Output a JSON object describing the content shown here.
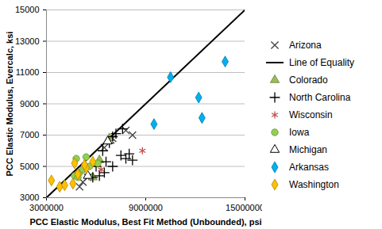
{
  "chart_data": {
    "type": "scatter",
    "xlabel": "PCC Elastic Modulus, Best Fit Method (Unbounded), psi",
    "ylabel": "PCC Elastic Modulus, Evercalc, ksi",
    "xlim": [
      3000000,
      15000000
    ],
    "xticks": [
      3000000,
      9000000,
      15000000
    ],
    "ylim": [
      3000,
      15000
    ],
    "yticks": [
      3000,
      5000,
      7000,
      9000,
      11000,
      13000,
      15000
    ],
    "grid": "y",
    "legend": "right",
    "series": [
      {
        "name": "Arizona",
        "type": "scatter",
        "marker": "x",
        "color": "#404040",
        "x": [
          7800000,
          8200000,
          7000000,
          5000000,
          5500000,
          6500000,
          5200000
        ],
        "y": [
          7300,
          7000,
          6800,
          3700,
          4300,
          6200,
          4000
        ]
      },
      {
        "name": "Line of Equality",
        "type": "line",
        "line_style": "solid",
        "color": "#000000",
        "x": [
          3000000,
          15000000
        ],
        "y": [
          3000,
          15000
        ]
      },
      {
        "name": "Colorado",
        "type": "scatter",
        "marker": "triangle",
        "color": "#9bbb59",
        "x": [
          5800000,
          6800000,
          6200000
        ],
        "y": [
          4300,
          6800,
          5400
        ]
      },
      {
        "name": "North Carolina",
        "type": "scatter",
        "marker": "plus",
        "color": "#000000",
        "x": [
          6200000,
          6500000,
          7000000,
          7500000,
          7800000,
          8200000,
          8000000,
          7600000,
          7200000,
          6800000,
          6400000,
          6600000,
          5800000,
          6000000,
          7000000
        ],
        "y": [
          4400,
          4600,
          5000,
          5700,
          5500,
          5400,
          5800,
          7400,
          7100,
          6500,
          6000,
          5300,
          4300,
          5000,
          6900
        ]
      },
      {
        "name": "Wisconsin",
        "type": "scatter",
        "marker": "asterisk",
        "color": "#c0504d",
        "x": [
          8800000,
          6300000
        ],
        "y": [
          6000,
          4800
        ]
      },
      {
        "name": "Iowa",
        "type": "scatter",
        "marker": "circle",
        "color": "#92d050",
        "x": [
          4800000,
          5000000,
          4700000,
          4900000,
          5400000,
          5200000,
          6100000,
          5600000
        ],
        "y": [
          5500,
          4600,
          4400,
          4300,
          5600,
          4800,
          5200,
          5000
        ]
      },
      {
        "name": "Michigan",
        "type": "scatter",
        "marker": "open_triangle",
        "color": "#000000",
        "x": [
          6700000,
          5500000
        ],
        "y": [
          6600,
          4400
        ]
      },
      {
        "name": "Arkansas",
        "type": "scatter",
        "marker": "diamond",
        "color": "#00b0f0",
        "x": [
          13800000,
          10500000,
          12200000,
          12400000,
          9500000
        ],
        "y": [
          11700,
          10700,
          9400,
          8100,
          7700
        ]
      },
      {
        "name": "Washington",
        "type": "scatter",
        "marker": "diamond",
        "color": "#ffc000",
        "x": [
          3300000,
          3800000,
          4100000,
          4700000,
          5400000,
          5800000,
          4600000,
          5300000,
          4900000
        ],
        "y": [
          4100,
          3700,
          3800,
          5200,
          4900,
          5300,
          3900,
          5100,
          4500
        ]
      }
    ]
  }
}
